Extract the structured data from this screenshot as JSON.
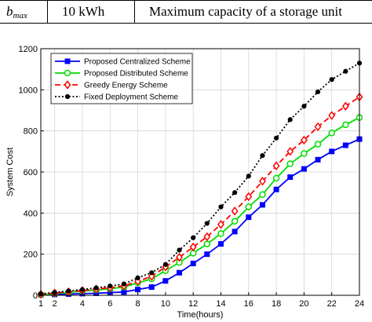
{
  "table": {
    "symbol_main": "b",
    "symbol_sub": "max",
    "value": "10 kWh",
    "description": "Maximum capacity of a storage unit"
  },
  "chart_data": {
    "type": "line",
    "xlabel": "Time(hours)",
    "ylabel": "System Cost",
    "xlim": [
      1,
      24
    ],
    "ylim": [
      0,
      1200
    ],
    "xticks": [
      1,
      2,
      4,
      6,
      8,
      10,
      12,
      14,
      16,
      18,
      20,
      22,
      24
    ],
    "yticks": [
      0,
      200,
      400,
      600,
      800,
      1000,
      1200
    ],
    "grid": true,
    "legend_position": "top-left",
    "x": [
      1,
      2,
      3,
      4,
      5,
      6,
      7,
      8,
      9,
      10,
      11,
      12,
      13,
      14,
      15,
      16,
      17,
      18,
      19,
      20,
      21,
      22,
      23,
      24
    ],
    "series": [
      {
        "name": "Proposed Centralized Scheme",
        "color": "#0000ff",
        "marker": "square",
        "line": "solid",
        "values": [
          2,
          4,
          6,
          8,
          10,
          13,
          16,
          28,
          40,
          70,
          110,
          155,
          200,
          250,
          310,
          380,
          440,
          515,
          575,
          615,
          660,
          700,
          730,
          760
        ]
      },
      {
        "name": "Proposed Distributed Scheme",
        "color": "#00dd00",
        "marker": "circle",
        "line": "solid",
        "values": [
          3,
          8,
          14,
          20,
          26,
          32,
          40,
          60,
          80,
          120,
          160,
          205,
          250,
          300,
          360,
          430,
          490,
          570,
          640,
          690,
          735,
          790,
          830,
          865
        ]
      },
      {
        "name": "Greedy Energy Scheme",
        "color": "#ff0000",
        "marker": "diamond",
        "line": "dashed",
        "values": [
          5,
          11,
          17,
          23,
          30,
          37,
          46,
          68,
          92,
          138,
          185,
          235,
          285,
          345,
          410,
          480,
          555,
          630,
          700,
          755,
          820,
          875,
          920,
          965
        ]
      },
      {
        "name": "Fixed Deployment Scheme",
        "color": "#000000",
        "marker": "dot",
        "line": "dotted",
        "values": [
          7,
          14,
          21,
          28,
          36,
          45,
          55,
          85,
          110,
          150,
          220,
          280,
          350,
          430,
          500,
          580,
          680,
          765,
          855,
          920,
          990,
          1050,
          1090,
          1130
        ]
      }
    ]
  }
}
